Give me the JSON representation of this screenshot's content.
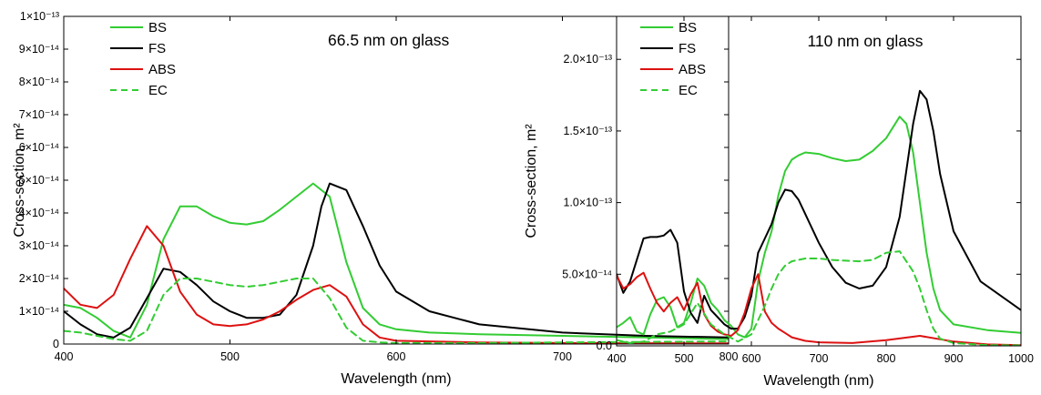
{
  "chart_data": [
    {
      "type": "line",
      "annotation": "66.5 nm on glass",
      "xlabel": "Wavelength (nm)",
      "ylabel": "Cross-section, m²",
      "xlim": [
        400,
        800
      ],
      "ylim": [
        0,
        1e-13
      ],
      "xticks": [
        400,
        500,
        600,
        700,
        800
      ],
      "xtick_labels": [
        "400",
        "500",
        "600",
        "700",
        "800"
      ],
      "yticks": [
        0,
        1e-14,
        2e-14,
        3e-14,
        4e-14,
        5e-14,
        6e-14,
        7e-14,
        8e-14,
        9e-14,
        1e-13
      ],
      "ytick_labels": [
        "0",
        "1×10⁻¹⁴",
        "2×10⁻¹⁴",
        "3×10⁻¹⁴",
        "4×10⁻¹⁴",
        "5×10⁻¹⁴",
        "6×10⁻¹⁴",
        "7×10⁻¹⁴",
        "8×10⁻¹⁴",
        "9×10⁻¹⁴",
        "1×10⁻¹³"
      ],
      "legend_position": "top-left",
      "series": [
        {
          "name": "BS",
          "color": "#33cc33",
          "dash": false,
          "x": [
            400,
            410,
            420,
            430,
            440,
            450,
            460,
            470,
            480,
            490,
            500,
            510,
            520,
            530,
            540,
            550,
            560,
            570,
            580,
            590,
            600,
            620,
            650,
            700,
            750,
            800
          ],
          "y": [
            1.2e-14,
            1.1e-14,
            8e-15,
            4e-15,
            2e-15,
            1.2e-14,
            3.2e-14,
            4.2e-14,
            4.2e-14,
            3.9e-14,
            3.7e-14,
            3.65e-14,
            3.75e-14,
            4.1e-14,
            4.5e-14,
            4.9e-14,
            4.5e-14,
            2.5e-14,
            1.1e-14,
            6e-15,
            4.5e-15,
            3.5e-15,
            3e-15,
            2.5e-15,
            2e-15,
            1.5e-15
          ]
        },
        {
          "name": "FS",
          "color": "#000000",
          "dash": false,
          "x": [
            400,
            410,
            420,
            430,
            440,
            450,
            460,
            470,
            480,
            490,
            500,
            510,
            520,
            530,
            540,
            550,
            555,
            560,
            570,
            580,
            590,
            600,
            620,
            650,
            700,
            750,
            800
          ],
          "y": [
            1e-14,
            6e-15,
            3e-15,
            2e-15,
            5e-15,
            1.4e-14,
            2.3e-14,
            2.2e-14,
            1.8e-14,
            1.3e-14,
            1e-14,
            8e-15,
            8e-15,
            9e-15,
            1.5e-14,
            3e-14,
            4.2e-14,
            4.9e-14,
            4.7e-14,
            3.6e-14,
            2.4e-14,
            1.6e-14,
            1e-14,
            6e-15,
            3.5e-15,
            2.5e-15,
            2e-15
          ]
        },
        {
          "name": "ABS",
          "color": "#dd1111",
          "dash": false,
          "x": [
            400,
            410,
            420,
            430,
            440,
            450,
            460,
            470,
            480,
            490,
            500,
            510,
            520,
            530,
            540,
            550,
            560,
            570,
            580,
            590,
            600,
            620,
            650,
            700,
            800
          ],
          "y": [
            1.7e-14,
            1.2e-14,
            1.1e-14,
            1.5e-14,
            2.6e-14,
            3.6e-14,
            3e-14,
            1.6e-14,
            9e-15,
            6e-15,
            5.5e-15,
            6e-15,
            7.5e-15,
            1e-14,
            1.35e-14,
            1.65e-14,
            1.8e-14,
            1.45e-14,
            6e-15,
            2e-15,
            1e-15,
            8e-16,
            5e-16,
            3e-16,
            2e-16
          ]
        },
        {
          "name": "EC",
          "color": "#33cc33",
          "dash": true,
          "x": [
            400,
            410,
            420,
            430,
            440,
            450,
            460,
            470,
            480,
            490,
            500,
            510,
            520,
            530,
            540,
            550,
            560,
            570,
            580,
            590,
            600,
            650,
            700,
            800
          ],
          "y": [
            4e-15,
            3.5e-15,
            2.5e-15,
            1.5e-15,
            1e-15,
            4e-15,
            1.5e-14,
            2e-14,
            2e-14,
            1.9e-14,
            1.8e-14,
            1.75e-14,
            1.8e-14,
            1.9e-14,
            2e-14,
            2e-14,
            1.4e-14,
            5e-15,
            1e-15,
            5e-16,
            3e-16,
            3e-16,
            5e-16,
            8e-16
          ]
        }
      ]
    },
    {
      "type": "line",
      "annotation": "110 nm on glass",
      "xlabel": "Wavelength (nm)",
      "ylabel": "Cross-section, m²",
      "xlim": [
        400,
        1000
      ],
      "ylim": [
        0,
        2.3e-13
      ],
      "xticks": [
        400,
        500,
        600,
        700,
        800,
        900,
        1000
      ],
      "xtick_labels": [
        "400",
        "500",
        "600",
        "700",
        "800",
        "900",
        "1000"
      ],
      "yticks": [
        0,
        5e-14,
        1e-13,
        1.5e-13,
        2e-13
      ],
      "ytick_labels": [
        "0.0",
        "5.0×10⁻¹⁴",
        "1.0×10⁻¹³",
        "1.5×10⁻¹³",
        "2.0×10⁻¹³"
      ],
      "legend_position": "top-left",
      "series": [
        {
          "name": "BS",
          "color": "#33cc33",
          "dash": false,
          "x": [
            400,
            410,
            420,
            430,
            440,
            450,
            460,
            470,
            480,
            490,
            500,
            510,
            520,
            530,
            540,
            550,
            560,
            570,
            580,
            590,
            600,
            610,
            620,
            630,
            640,
            650,
            660,
            670,
            680,
            700,
            720,
            740,
            760,
            780,
            800,
            820,
            830,
            840,
            850,
            860,
            870,
            880,
            900,
            950,
            1000
          ],
          "y": [
            1.3e-14,
            1.6e-14,
            2e-14,
            1e-14,
            8e-15,
            2.2e-14,
            3.2e-14,
            3.4e-14,
            2.7e-14,
            1.3e-14,
            1.6e-14,
            3e-14,
            4.7e-14,
            4.2e-14,
            3e-14,
            2.5e-14,
            1.8e-14,
            1.4e-14,
            8e-15,
            6e-15,
            1.2e-14,
            4.5e-14,
            6.5e-14,
            8e-14,
            1.05e-13,
            1.22e-13,
            1.3e-13,
            1.33e-13,
            1.35e-13,
            1.34e-13,
            1.31e-13,
            1.29e-13,
            1.3e-13,
            1.36e-13,
            1.45e-13,
            1.6e-13,
            1.55e-13,
            1.35e-13,
            1e-13,
            6.5e-14,
            4e-14,
            2.5e-14,
            1.5e-14,
            1.1e-14,
            9e-15
          ]
        },
        {
          "name": "FS",
          "color": "#000000",
          "dash": false,
          "x": [
            400,
            410,
            420,
            430,
            440,
            450,
            460,
            470,
            480,
            490,
            500,
            510,
            520,
            530,
            540,
            550,
            560,
            570,
            580,
            590,
            600,
            610,
            620,
            630,
            640,
            650,
            660,
            670,
            680,
            700,
            720,
            740,
            760,
            780,
            800,
            820,
            840,
            850,
            860,
            870,
            880,
            900,
            940,
            1000
          ],
          "y": [
            5e-14,
            3.7e-14,
            4.5e-14,
            6e-14,
            7.5e-14,
            7.6e-14,
            7.6e-14,
            7.7e-14,
            8.1e-14,
            7.2e-14,
            3.8e-14,
            2.3e-14,
            1.6e-14,
            3.5e-14,
            2.5e-14,
            2e-14,
            1.5e-14,
            1.2e-14,
            1.2e-14,
            2e-14,
            3.5e-14,
            6.5e-14,
            7.5e-14,
            8.5e-14,
            1e-13,
            1.09e-13,
            1.08e-13,
            1.02e-13,
            9.2e-14,
            7.2e-14,
            5.5e-14,
            4.4e-14,
            4e-14,
            4.2e-14,
            5.5e-14,
            9e-14,
            1.55e-13,
            1.78e-13,
            1.72e-13,
            1.5e-13,
            1.2e-13,
            8e-14,
            4.5e-14,
            2.5e-14
          ]
        },
        {
          "name": "ABS",
          "color": "#dd1111",
          "dash": false,
          "x": [
            400,
            410,
            420,
            430,
            440,
            450,
            460,
            470,
            480,
            490,
            500,
            510,
            520,
            530,
            540,
            550,
            560,
            570,
            580,
            590,
            600,
            610,
            620,
            630,
            640,
            650,
            660,
            680,
            700,
            750,
            800,
            850,
            900,
            950,
            1000
          ],
          "y": [
            4.9e-14,
            4e-14,
            4.3e-14,
            4.8e-14,
            5.1e-14,
            4e-14,
            3e-14,
            2.4e-14,
            3e-14,
            3.4e-14,
            2.5e-14,
            3.6e-14,
            4.4e-14,
            2.2e-14,
            1.4e-14,
            1e-14,
            8e-15,
            7e-15,
            1.1e-14,
            2.3e-14,
            4e-14,
            5e-14,
            2.4e-14,
            1.6e-14,
            1.2e-14,
            9e-15,
            6e-15,
            3.5e-15,
            2.5e-15,
            2e-15,
            4e-15,
            7e-15,
            3e-15,
            1e-15,
            5e-16
          ]
        },
        {
          "name": "EC",
          "color": "#33cc33",
          "dash": true,
          "x": [
            400,
            420,
            440,
            460,
            480,
            500,
            520,
            540,
            560,
            580,
            600,
            610,
            620,
            630,
            640,
            650,
            660,
            680,
            700,
            720,
            740,
            760,
            780,
            800,
            820,
            840,
            850,
            860,
            870,
            880,
            900,
            950,
            1000
          ],
          "y": [
            4e-15,
            2e-15,
            3e-15,
            8e-15,
            1e-14,
            1.5e-14,
            3e-14,
            1.5e-14,
            8e-15,
            3e-15,
            8e-15,
            1.8e-14,
            2.8e-14,
            4e-14,
            5e-14,
            5.6e-14,
            5.9e-14,
            6.1e-14,
            6.1e-14,
            6e-14,
            5.95e-14,
            5.9e-14,
            6e-14,
            6.5e-14,
            6.6e-14,
            5.2e-14,
            4e-14,
            2.5e-14,
            1.2e-14,
            5e-15,
            2e-15,
            5e-16,
            3e-16
          ]
        }
      ]
    }
  ]
}
